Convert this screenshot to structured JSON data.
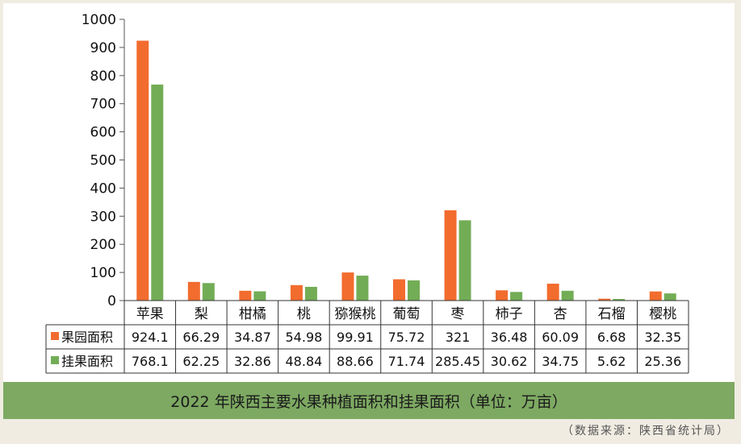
{
  "chart_data": {
    "type": "bar",
    "categories": [
      "苹果",
      "梨",
      "柑橘",
      "桃",
      "猕猴桃",
      "葡萄",
      "枣",
      "柿子",
      "杏",
      "石榴",
      "樱桃"
    ],
    "series": [
      {
        "name": "果园面积",
        "color": "#f26c2e",
        "values": [
          924.1,
          66.29,
          34.87,
          54.98,
          99.91,
          75.72,
          321,
          36.48,
          60.09,
          6.68,
          32.35
        ],
        "labels": [
          "924.1",
          "66.29",
          "34.87",
          "54.98",
          "99.91",
          "75.72",
          "321",
          "36.48",
          "60.09",
          "6.68",
          "32.35"
        ]
      },
      {
        "name": "挂果面积",
        "color": "#72ad56",
        "values": [
          768.1,
          62.25,
          32.86,
          48.84,
          88.66,
          71.74,
          285.45,
          30.62,
          34.75,
          5.62,
          25.36
        ],
        "labels": [
          "768.1",
          "62.25",
          "32.86",
          "48.84",
          "88.66",
          "71.74",
          "285.45",
          "30.62",
          "34.75",
          "5.62",
          "25.36"
        ]
      }
    ],
    "ylim": [
      0,
      1000
    ],
    "yticks": [
      0,
      100,
      200,
      300,
      400,
      500,
      600,
      700,
      800,
      900,
      1000
    ],
    "data_table": true
  },
  "caption": "2022 年陕西主要水果种植面积和挂果面积（单位：万亩）",
  "source_note": "（数据来源：陕西省统计局）"
}
